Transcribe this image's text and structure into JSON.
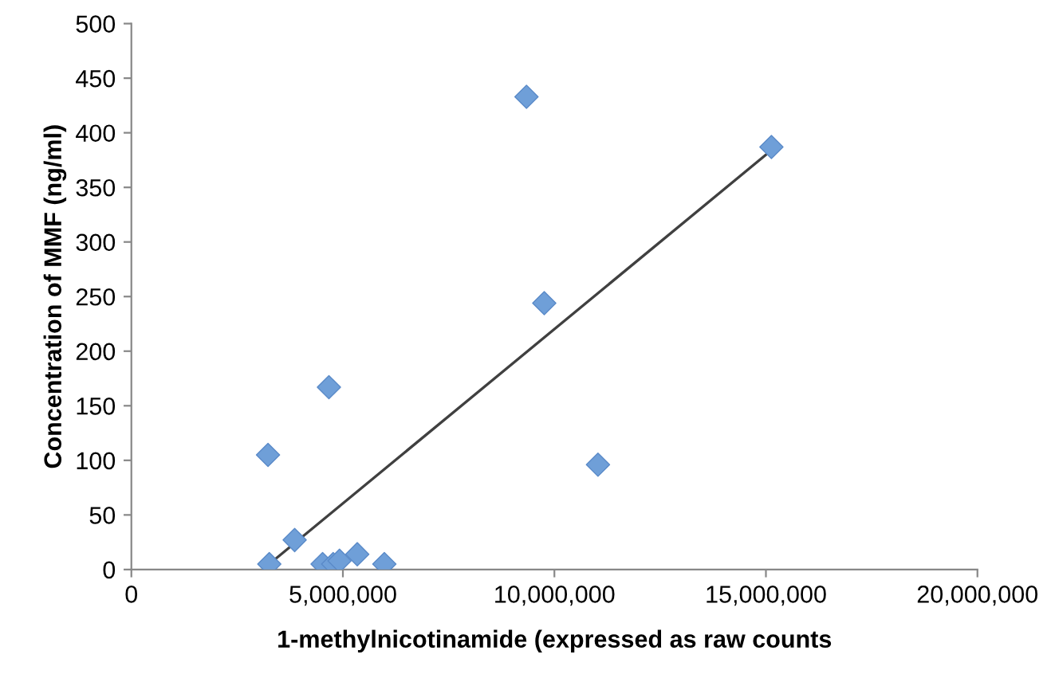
{
  "chart_data": {
    "type": "scatter",
    "xlabel": "1-methylnicotinamide (expressed as raw counts",
    "ylabel": "Concentration of MMF (ng/ml)",
    "xlim": [
      0,
      20000000
    ],
    "xticks": [
      {
        "value": 0,
        "label": "0"
      },
      {
        "value": 5000000,
        "label": "5,000,000"
      },
      {
        "value": 10000000,
        "label": "10,000,000"
      },
      {
        "value": 15000000,
        "label": "15,000,000"
      },
      {
        "value": 20000000,
        "label": "20,000,000"
      }
    ],
    "ylim": [
      0,
      500
    ],
    "yticks": [
      0,
      50,
      100,
      150,
      200,
      250,
      300,
      350,
      400,
      450,
      500
    ],
    "grid": false,
    "legend": false,
    "series": [
      {
        "marker": "diamond",
        "color": "#6f9fd8",
        "x": [
          3260000,
          3230000,
          4670000,
          3860000,
          4520000,
          4770000,
          4920000,
          5340000,
          5980000,
          9340000,
          15130000,
          9760000,
          11030000
        ],
        "values": [
          5,
          105,
          167,
          27,
          5,
          5,
          8,
          14,
          5,
          433,
          387,
          244,
          96
        ]
      },
      {
        "type": "line",
        "color": "#404040",
        "line_style": "solid",
        "marker": "none",
        "x": [
          3260000,
          15130000
        ],
        "values": [
          5,
          384
        ]
      }
    ]
  }
}
